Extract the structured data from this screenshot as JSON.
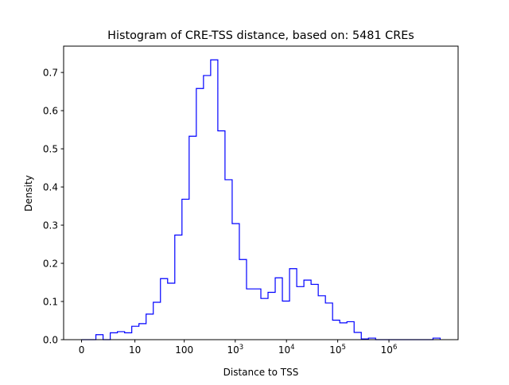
{
  "chart_data": {
    "type": "histogram",
    "title": "Histogram of CRE-TSS distance, based on: 5481 CREs",
    "xlabel": "Distance to TSS",
    "ylabel": "Density",
    "x_scale": "log10(distance+1)",
    "xlim": [
      -0.35,
      7.35
    ],
    "ylim": [
      0,
      0.769
    ],
    "bin_range": [
      0,
      7
    ],
    "bin_count": 50,
    "histtype": "step",
    "color": "#0000ff",
    "x_ticks": [
      {
        "value": 0,
        "label": "0",
        "sup": ""
      },
      {
        "value": 1.0414,
        "label": "10",
        "sup": ""
      },
      {
        "value": 2.0043,
        "label": "100",
        "sup": ""
      },
      {
        "value": 3,
        "label": "10",
        "sup": "3"
      },
      {
        "value": 4,
        "label": "10",
        "sup": "4"
      },
      {
        "value": 5,
        "label": "10",
        "sup": "5"
      },
      {
        "value": 6,
        "label": "10",
        "sup": "6"
      }
    ],
    "y_ticks": [
      {
        "value": 0.0,
        "label": "0.0"
      },
      {
        "value": 0.1,
        "label": "0.1"
      },
      {
        "value": 0.2,
        "label": "0.2"
      },
      {
        "value": 0.3,
        "label": "0.3"
      },
      {
        "value": 0.4,
        "label": "0.4"
      },
      {
        "value": 0.5,
        "label": "0.5"
      },
      {
        "value": 0.6,
        "label": "0.6"
      },
      {
        "value": 0.7,
        "label": "0.7"
      }
    ],
    "density": [
      0,
      0,
      0.013,
      0,
      0.018,
      0.021,
      0.018,
      0.035,
      0.042,
      0.067,
      0.098,
      0.16,
      0.148,
      0.274,
      0.368,
      0.533,
      0.658,
      0.692,
      0.733,
      0.547,
      0.419,
      0.304,
      0.21,
      0.133,
      0.133,
      0.108,
      0.124,
      0.162,
      0.101,
      0.186,
      0.139,
      0.156,
      0.145,
      0.115,
      0.096,
      0.051,
      0.044,
      0.047,
      0.019,
      0.002,
      0.004,
      0,
      0,
      0,
      0,
      0,
      0,
      0,
      0,
      0.004
    ]
  }
}
